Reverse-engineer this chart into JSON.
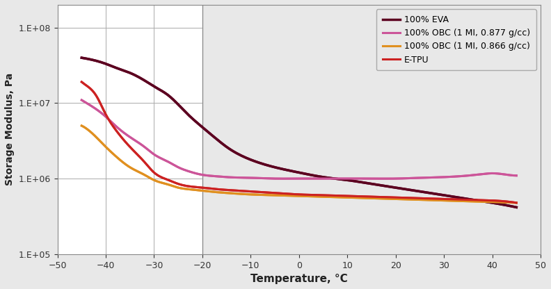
{
  "title": "",
  "xlabel": "Temperature, °C",
  "ylabel": "Storage Modulus, Pa",
  "xlim": [
    -50,
    50
  ],
  "yticks": [
    100000.0,
    1000000.0,
    10000000.0,
    100000000.0
  ],
  "ytick_labels": [
    "1.E+05",
    "1.E+06",
    "1.E+07",
    "1.E+08"
  ],
  "xticks": [
    -50,
    -40,
    -30,
    -20,
    -10,
    0,
    10,
    20,
    30,
    40,
    50
  ],
  "vline_x": -20,
  "background_color": "#e8e8e8",
  "plot_bg_left_color": "#ffffff",
  "plot_bg_right_color": "#e8e8e8",
  "series": [
    {
      "label": "100% EVA",
      "color": "#5c0020",
      "linewidth": 2.5,
      "x": [
        -45,
        -42,
        -40,
        -38,
        -35,
        -32,
        -30,
        -27,
        -25,
        -23,
        -20,
        -17,
        -15,
        -10,
        -5,
        0,
        5,
        10,
        15,
        20,
        25,
        30,
        35,
        40,
        45
      ],
      "y_log": [
        7.6,
        7.56,
        7.52,
        7.47,
        7.4,
        7.3,
        7.22,
        7.1,
        6.98,
        6.85,
        6.68,
        6.52,
        6.42,
        6.25,
        6.15,
        6.08,
        6.02,
        5.98,
        5.93,
        5.88,
        5.83,
        5.78,
        5.73,
        5.68,
        5.62
      ]
    },
    {
      "label": "100% OBC (1 MI, 0.877 g/cc)",
      "color": "#cc5599",
      "linewidth": 2.2,
      "x": [
        -45,
        -42,
        -40,
        -38,
        -35,
        -32,
        -30,
        -27,
        -25,
        -23,
        -20,
        -17,
        -15,
        -10,
        -5,
        0,
        5,
        10,
        15,
        20,
        25,
        30,
        35,
        38,
        40,
        42,
        45
      ],
      "y_log": [
        7.04,
        6.92,
        6.82,
        6.7,
        6.55,
        6.42,
        6.32,
        6.22,
        6.15,
        6.1,
        6.05,
        6.03,
        6.02,
        6.01,
        6.0,
        6.0,
        6.0,
        6.0,
        6.0,
        6.0,
        6.01,
        6.02,
        6.04,
        6.06,
        6.07,
        6.06,
        6.04
      ]
    },
    {
      "label": "100% OBC (1 MI, 0.866 g/cc)",
      "color": "#e09020",
      "linewidth": 2.2,
      "x": [
        -45,
        -42,
        -40,
        -38,
        -35,
        -32,
        -30,
        -27,
        -25,
        -23,
        -20,
        -17,
        -15,
        -10,
        -5,
        0,
        5,
        10,
        15,
        20,
        25,
        30,
        35,
        40,
        45
      ],
      "y_log": [
        6.7,
        6.55,
        6.42,
        6.3,
        6.15,
        6.05,
        5.98,
        5.92,
        5.88,
        5.86,
        5.84,
        5.82,
        5.81,
        5.79,
        5.78,
        5.77,
        5.76,
        5.75,
        5.74,
        5.73,
        5.72,
        5.71,
        5.7,
        5.69,
        5.68
      ]
    },
    {
      "label": "E-TPU",
      "color": "#cc2222",
      "linewidth": 2.2,
      "x": [
        -45,
        -43,
        -42,
        -41,
        -40,
        -38,
        -35,
        -32,
        -30,
        -27,
        -25,
        -23,
        -20,
        -17,
        -15,
        -10,
        -5,
        0,
        5,
        10,
        15,
        20,
        25,
        30,
        35,
        40,
        45
      ],
      "y_log": [
        7.28,
        7.18,
        7.1,
        6.98,
        6.85,
        6.65,
        6.42,
        6.22,
        6.08,
        5.98,
        5.93,
        5.9,
        5.88,
        5.86,
        5.85,
        5.83,
        5.81,
        5.79,
        5.78,
        5.77,
        5.76,
        5.75,
        5.74,
        5.73,
        5.72,
        5.71,
        5.68
      ]
    }
  ]
}
